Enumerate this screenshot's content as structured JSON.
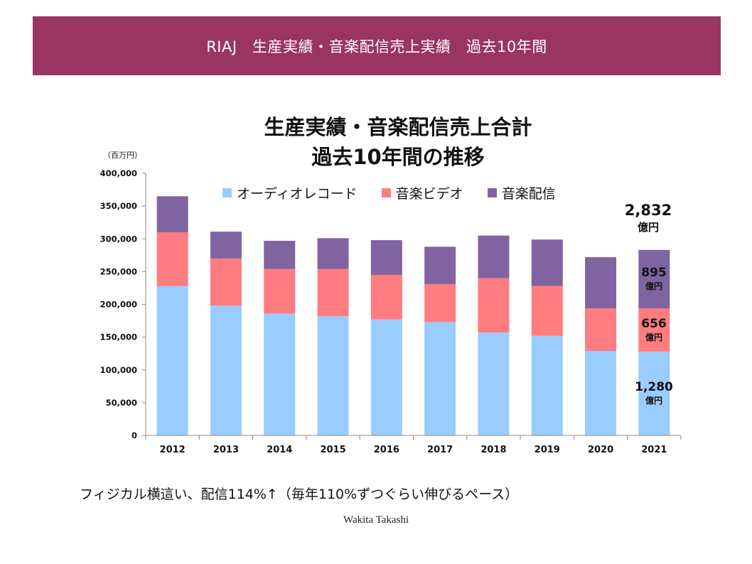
{
  "header": {
    "title": "RIAJ　生産実績・音楽配信売上実績　過去10年間"
  },
  "chart_data": {
    "type": "bar",
    "stacked": true,
    "title_line1": "生産実績・音楽配信売上合計",
    "title_line2": "過去10年間の推移",
    "unit_label": "（百万円）",
    "categories": [
      "2012",
      "2013",
      "2014",
      "2015",
      "2016",
      "2017",
      "2018",
      "2019",
      "2020",
      "2021"
    ],
    "series": [
      {
        "name": "オーディオレコード",
        "color": "#99ccff",
        "values": [
          228000,
          198000,
          186000,
          182000,
          177000,
          173000,
          157000,
          152000,
          129000,
          128000
        ]
      },
      {
        "name": "音楽ビデオ",
        "color": "#ff7c80",
        "values": [
          82000,
          72000,
          68000,
          72000,
          68000,
          58000,
          83000,
          76000,
          65000,
          65600
        ]
      },
      {
        "name": "音楽配信",
        "color": "#8064a2",
        "values": [
          55000,
          41000,
          43000,
          47000,
          53000,
          57000,
          65000,
          71000,
          78000,
          89500
        ]
      }
    ],
    "ylim": [
      0,
      400000
    ],
    "yticks": [
      0,
      50000,
      100000,
      150000,
      200000,
      250000,
      300000,
      350000,
      400000
    ],
    "ytick_labels": [
      "0",
      "50,000",
      "100,000",
      "150,000",
      "200,000",
      "250,000",
      "300,000",
      "350,000",
      "400,000"
    ],
    "annotations": {
      "total_value": "2,832",
      "total_unit": "億円",
      "streaming_value": "895",
      "streaming_unit": "億円",
      "video_value": "656",
      "video_unit": "億円",
      "audio_value": "1,280",
      "audio_unit": "億円"
    }
  },
  "caption": "フィジカル横這い、配信114%↑（毎年110%ずつぐらい伸びるペース）",
  "author": "Wakita Takashi"
}
